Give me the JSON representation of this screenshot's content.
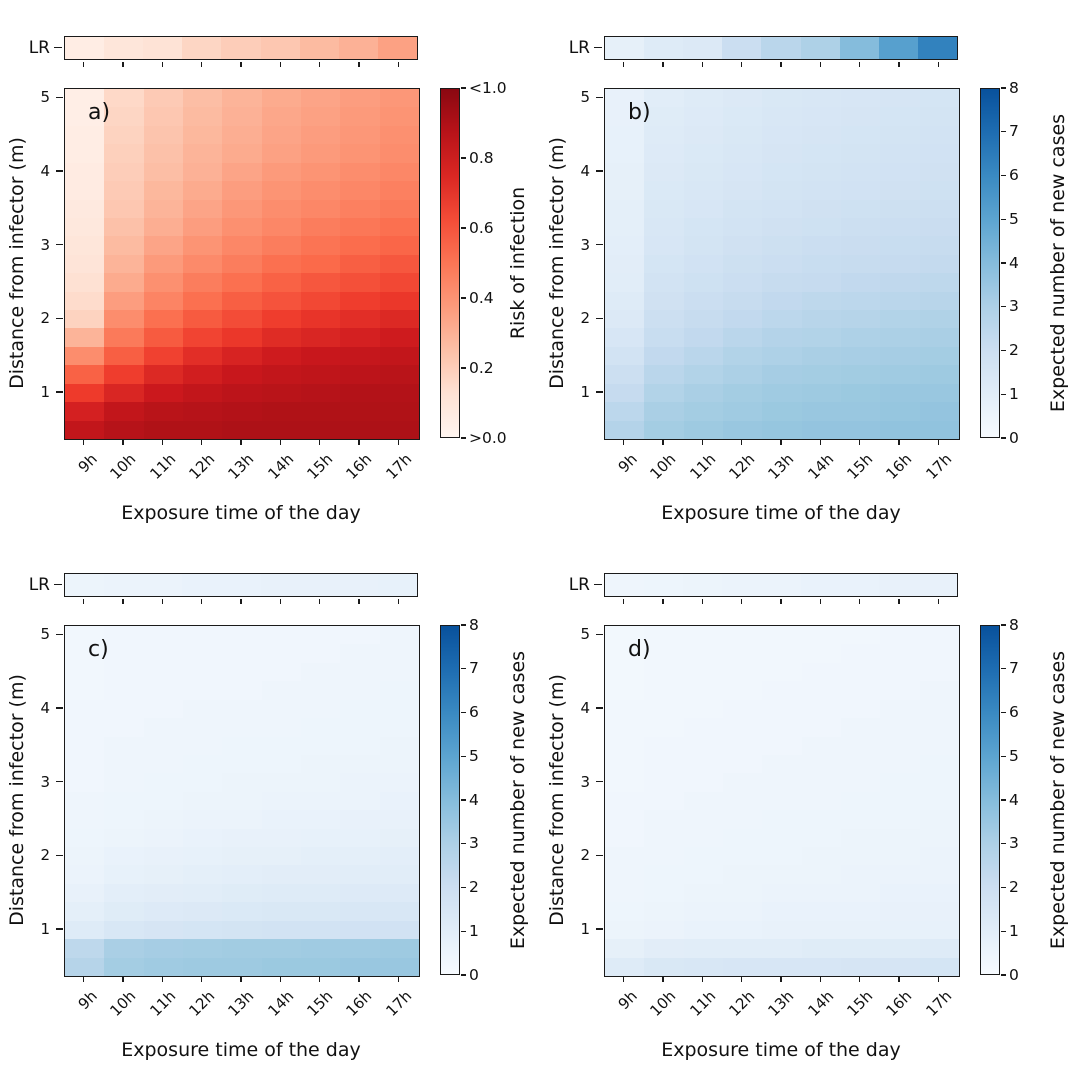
{
  "colors": {
    "background": "#ffffff",
    "text": "#111111",
    "spine": "#1a1a1a",
    "colormaps": {
      "Reds": [
        "#fff5f0",
        "#fee0d2",
        "#fcbba1",
        "#fc9272",
        "#fb6a4a",
        "#ef3b2c",
        "#cb181d",
        "#a50f15",
        "#67000d"
      ],
      "Blues": [
        "#f7fbff",
        "#deebf7",
        "#c6dbef",
        "#9ecae1",
        "#6baed6",
        "#4292c6",
        "#2171b5",
        "#08519c",
        "#08306b"
      ]
    },
    "colorbar_gradients": {
      "Reds": [
        "#fff5f0",
        "#fee2d4",
        "#fcbfa6",
        "#fc9a7b",
        "#fb7555",
        "#f34c37",
        "#da2723",
        "#b81319",
        "#8a0811"
      ],
      "Blues": [
        "#f7fbff",
        "#e1edf8",
        "#ccdef1",
        "#add0e6",
        "#85bcdc",
        "#5ca4d0",
        "#3a8ac2",
        "#1e6db2",
        "#08519c"
      ]
    }
  },
  "chart_data": [
    {
      "type": "heatmap",
      "title": "a)",
      "lr_label": "LR",
      "xlabel": "Exposure time of the day",
      "ylabel": "Distance from infector (m)",
      "colorbar_label": "Risk of infection",
      "colormap": "Reds",
      "vmin": 0,
      "vmax": 1,
      "x_ticklabels": [
        "9h",
        "10h",
        "11h",
        "12h",
        "13h",
        "14h",
        "15h",
        "16h",
        "17h"
      ],
      "y_ticklabels": [
        "1",
        "2",
        "3",
        "4",
        "5"
      ],
      "y_range": [
        0.375,
        5.125
      ],
      "cb_ticks": [
        [
          1.0,
          "<1.0"
        ],
        [
          0.8,
          "0.8"
        ],
        [
          0.6,
          "0.6"
        ],
        [
          0.4,
          "0.4"
        ],
        [
          0.2,
          "0.2"
        ],
        [
          0.0,
          ">0.0"
        ]
      ],
      "lr_values": [
        0.05,
        0.09,
        0.11,
        0.16,
        0.19,
        0.21,
        0.25,
        0.28,
        0.33
      ],
      "row_distances": [
        5.0,
        4.75,
        4.5,
        4.25,
        4.0,
        3.75,
        3.5,
        3.25,
        3.0,
        2.75,
        2.5,
        2.25,
        2.0,
        1.75,
        1.5,
        1.25,
        1.0,
        0.75,
        0.5
      ],
      "values": [
        [
          0.04,
          0.15,
          0.2,
          0.24,
          0.27,
          0.3,
          0.32,
          0.34,
          0.36
        ],
        [
          0.04,
          0.16,
          0.21,
          0.25,
          0.28,
          0.31,
          0.33,
          0.35,
          0.37
        ],
        [
          0.05,
          0.17,
          0.22,
          0.26,
          0.29,
          0.32,
          0.34,
          0.36,
          0.38
        ],
        [
          0.05,
          0.18,
          0.23,
          0.27,
          0.3,
          0.33,
          0.35,
          0.37,
          0.39
        ],
        [
          0.06,
          0.19,
          0.24,
          0.28,
          0.32,
          0.35,
          0.37,
          0.39,
          0.41
        ],
        [
          0.06,
          0.2,
          0.26,
          0.3,
          0.34,
          0.37,
          0.39,
          0.41,
          0.43
        ],
        [
          0.07,
          0.21,
          0.27,
          0.32,
          0.36,
          0.39,
          0.41,
          0.43,
          0.45
        ],
        [
          0.08,
          0.23,
          0.29,
          0.34,
          0.38,
          0.41,
          0.44,
          0.46,
          0.48
        ],
        [
          0.09,
          0.25,
          0.32,
          0.37,
          0.41,
          0.44,
          0.47,
          0.49,
          0.51
        ],
        [
          0.1,
          0.27,
          0.35,
          0.4,
          0.44,
          0.48,
          0.5,
          0.53,
          0.55
        ],
        [
          0.12,
          0.3,
          0.38,
          0.44,
          0.48,
          0.52,
          0.55,
          0.57,
          0.59
        ],
        [
          0.14,
          0.34,
          0.42,
          0.48,
          0.53,
          0.56,
          0.59,
          0.62,
          0.64
        ],
        [
          0.17,
          0.39,
          0.48,
          0.54,
          0.58,
          0.62,
          0.65,
          0.67,
          0.69
        ],
        [
          0.27,
          0.45,
          0.54,
          0.6,
          0.64,
          0.68,
          0.7,
          0.72,
          0.74
        ],
        [
          0.39,
          0.53,
          0.61,
          0.67,
          0.71,
          0.74,
          0.76,
          0.77,
          0.78
        ],
        [
          0.52,
          0.62,
          0.69,
          0.73,
          0.76,
          0.78,
          0.79,
          0.8,
          0.81
        ],
        [
          0.63,
          0.7,
          0.75,
          0.78,
          0.8,
          0.81,
          0.82,
          0.83,
          0.83
        ],
        [
          0.72,
          0.78,
          0.81,
          0.82,
          0.83,
          0.84,
          0.84,
          0.84,
          0.84
        ],
        [
          0.78,
          0.82,
          0.84,
          0.84,
          0.85,
          0.85,
          0.85,
          0.85,
          0.85
        ]
      ]
    },
    {
      "type": "heatmap",
      "title": "b)",
      "lr_label": "LR",
      "xlabel": "Exposure time of the day",
      "ylabel": "Distance from infector (m)",
      "colorbar_label": "Expected number of new cases",
      "colormap": "Blues",
      "vmin": 0,
      "vmax": 8,
      "x_ticklabels": [
        "9h",
        "10h",
        "11h",
        "12h",
        "13h",
        "14h",
        "15h",
        "16h",
        "17h"
      ],
      "y_ticklabels": [
        "1",
        "2",
        "3",
        "4",
        "5"
      ],
      "y_range": [
        0.375,
        5.125
      ],
      "cb_ticks": [
        [
          1.0,
          "8"
        ],
        [
          0.875,
          "7"
        ],
        [
          0.75,
          "6"
        ],
        [
          0.625,
          "5"
        ],
        [
          0.5,
          "4"
        ],
        [
          0.375,
          "3"
        ],
        [
          0.25,
          "2"
        ],
        [
          0.125,
          "1"
        ],
        [
          0.0,
          "0"
        ]
      ],
      "lr_values": [
        0.7,
        1.0,
        1.1,
        1.8,
        2.3,
        2.6,
        3.5,
        4.5,
        5.5
      ],
      "row_distances": [
        5.0,
        4.75,
        4.5,
        4.25,
        4.0,
        3.75,
        3.5,
        3.25,
        3.0,
        2.75,
        2.5,
        2.25,
        2.0,
        1.75,
        1.5,
        1.25,
        1.0,
        0.75,
        0.5
      ],
      "values": [
        [
          0.6,
          0.9,
          1.0,
          1.1,
          1.2,
          1.25,
          1.3,
          1.35,
          1.4
        ],
        [
          0.6,
          0.95,
          1.05,
          1.15,
          1.25,
          1.3,
          1.35,
          1.4,
          1.45
        ],
        [
          0.65,
          1.0,
          1.1,
          1.2,
          1.3,
          1.35,
          1.4,
          1.45,
          1.5
        ],
        [
          0.65,
          1.05,
          1.15,
          1.25,
          1.35,
          1.4,
          1.45,
          1.5,
          1.55
        ],
        [
          0.7,
          1.1,
          1.2,
          1.3,
          1.4,
          1.45,
          1.5,
          1.55,
          1.6
        ],
        [
          0.7,
          1.15,
          1.25,
          1.35,
          1.45,
          1.5,
          1.55,
          1.6,
          1.65
        ],
        [
          0.75,
          1.2,
          1.3,
          1.45,
          1.5,
          1.6,
          1.65,
          1.7,
          1.75
        ],
        [
          0.75,
          1.25,
          1.4,
          1.5,
          1.6,
          1.65,
          1.75,
          1.8,
          1.85
        ],
        [
          0.8,
          1.3,
          1.45,
          1.6,
          1.7,
          1.8,
          1.85,
          1.9,
          1.95
        ],
        [
          0.85,
          1.4,
          1.55,
          1.7,
          1.8,
          1.9,
          1.95,
          2.0,
          2.05
        ],
        [
          0.9,
          1.5,
          1.65,
          1.8,
          1.95,
          2.0,
          2.1,
          2.15,
          2.2
        ],
        [
          1.0,
          1.6,
          1.8,
          1.95,
          2.1,
          2.2,
          2.25,
          2.3,
          2.35
        ],
        [
          1.1,
          1.75,
          1.95,
          2.1,
          2.25,
          2.35,
          2.4,
          2.5,
          2.55
        ],
        [
          1.3,
          1.9,
          2.1,
          2.3,
          2.45,
          2.5,
          2.6,
          2.65,
          2.7
        ],
        [
          1.5,
          2.1,
          2.3,
          2.5,
          2.6,
          2.7,
          2.75,
          2.8,
          2.85
        ],
        [
          1.75,
          2.3,
          2.5,
          2.65,
          2.8,
          2.85,
          2.9,
          2.95,
          3.0
        ],
        [
          2.0,
          2.5,
          2.7,
          2.85,
          2.95,
          3.0,
          3.05,
          3.1,
          3.1
        ],
        [
          2.25,
          2.7,
          2.85,
          2.95,
          3.05,
          3.1,
          3.1,
          3.15,
          3.2
        ],
        [
          2.45,
          2.85,
          3.0,
          3.1,
          3.15,
          3.2,
          3.2,
          3.25,
          3.25
        ]
      ]
    },
    {
      "type": "heatmap",
      "title": "c)",
      "lr_label": "LR",
      "xlabel": "Exposure time of the day",
      "ylabel": "Distance from infector (m)",
      "colorbar_label": "Expected number of new cases",
      "colormap": "Blues",
      "vmin": 0,
      "vmax": 8,
      "x_ticklabels": [
        "9h",
        "10h",
        "11h",
        "12h",
        "13h",
        "14h",
        "15h",
        "16h",
        "17h"
      ],
      "y_ticklabels": [
        "1",
        "2",
        "3",
        "4",
        "5"
      ],
      "y_range": [
        0.375,
        5.125
      ],
      "cb_ticks": [
        [
          1.0,
          "8"
        ],
        [
          0.875,
          "7"
        ],
        [
          0.75,
          "6"
        ],
        [
          0.625,
          "5"
        ],
        [
          0.5,
          "4"
        ],
        [
          0.375,
          "3"
        ],
        [
          0.25,
          "2"
        ],
        [
          0.125,
          "1"
        ],
        [
          0.0,
          "0"
        ]
      ],
      "lr_values": [
        0.45,
        0.5,
        0.5,
        0.55,
        0.55,
        0.6,
        0.6,
        0.6,
        0.65
      ],
      "row_distances": [
        5.0,
        4.75,
        4.5,
        4.25,
        4.0,
        3.75,
        3.5,
        3.25,
        3.0,
        2.75,
        2.5,
        2.25,
        2.0,
        1.75,
        1.5,
        1.25,
        1.0,
        0.75,
        0.5
      ],
      "values": [
        [
          0.25,
          0.3,
          0.3,
          0.3,
          0.3,
          0.3,
          0.3,
          0.3,
          0.35
        ],
        [
          0.25,
          0.3,
          0.3,
          0.3,
          0.3,
          0.3,
          0.3,
          0.35,
          0.35
        ],
        [
          0.25,
          0.3,
          0.3,
          0.3,
          0.3,
          0.3,
          0.35,
          0.35,
          0.35
        ],
        [
          0.25,
          0.3,
          0.3,
          0.3,
          0.3,
          0.35,
          0.35,
          0.35,
          0.4
        ],
        [
          0.3,
          0.3,
          0.3,
          0.35,
          0.35,
          0.35,
          0.35,
          0.4,
          0.4
        ],
        [
          0.3,
          0.3,
          0.35,
          0.35,
          0.35,
          0.35,
          0.4,
          0.4,
          0.4
        ],
        [
          0.3,
          0.35,
          0.35,
          0.35,
          0.4,
          0.4,
          0.4,
          0.4,
          0.45
        ],
        [
          0.3,
          0.35,
          0.35,
          0.4,
          0.4,
          0.4,
          0.45,
          0.45,
          0.45
        ],
        [
          0.3,
          0.35,
          0.4,
          0.4,
          0.45,
          0.45,
          0.45,
          0.5,
          0.5
        ],
        [
          0.35,
          0.4,
          0.4,
          0.45,
          0.45,
          0.5,
          0.5,
          0.5,
          0.55
        ],
        [
          0.35,
          0.4,
          0.45,
          0.5,
          0.5,
          0.55,
          0.55,
          0.6,
          0.6
        ],
        [
          0.4,
          0.45,
          0.5,
          0.55,
          0.6,
          0.6,
          0.65,
          0.65,
          0.7
        ],
        [
          0.45,
          0.55,
          0.6,
          0.65,
          0.7,
          0.7,
          0.75,
          0.75,
          0.8
        ],
        [
          0.5,
          0.65,
          0.7,
          0.75,
          0.8,
          0.85,
          0.85,
          0.9,
          0.9
        ],
        [
          0.6,
          0.8,
          0.85,
          0.9,
          0.95,
          1.0,
          1.0,
          1.05,
          1.05
        ],
        [
          0.75,
          0.95,
          1.05,
          1.1,
          1.15,
          1.2,
          1.2,
          1.25,
          1.25
        ],
        [
          1.0,
          1.25,
          1.35,
          1.4,
          1.45,
          1.5,
          1.5,
          1.55,
          1.55
        ],
        [
          2.2,
          2.7,
          2.8,
          2.85,
          2.9,
          2.9,
          2.95,
          2.95,
          3.0
        ],
        [
          2.4,
          2.85,
          2.95,
          3.0,
          3.0,
          3.05,
          3.05,
          3.1,
          3.1
        ]
      ]
    },
    {
      "type": "heatmap",
      "title": "d)",
      "lr_label": "LR",
      "xlabel": "Exposure time of the day",
      "ylabel": "Distance from infector (m)",
      "colorbar_label": "Expected number of new cases",
      "colormap": "Blues",
      "vmin": 0,
      "vmax": 8,
      "x_ticklabels": [
        "9h",
        "10h",
        "11h",
        "12h",
        "13h",
        "14h",
        "15h",
        "16h",
        "17h"
      ],
      "y_ticklabels": [
        "1",
        "2",
        "3",
        "4",
        "5"
      ],
      "y_range": [
        0.375,
        5.125
      ],
      "cb_ticks": [
        [
          1.0,
          "8"
        ],
        [
          0.875,
          "7"
        ],
        [
          0.75,
          "6"
        ],
        [
          0.625,
          "5"
        ],
        [
          0.5,
          "4"
        ],
        [
          0.375,
          "3"
        ],
        [
          0.25,
          "2"
        ],
        [
          0.125,
          "1"
        ],
        [
          0.0,
          "0"
        ]
      ],
      "lr_values": [
        0.35,
        0.4,
        0.45,
        0.5,
        0.5,
        0.55,
        0.55,
        0.6,
        0.6
      ],
      "row_distances": [
        5.0,
        4.75,
        4.5,
        4.25,
        4.0,
        3.75,
        3.5,
        3.25,
        3.0,
        2.75,
        2.5,
        2.25,
        2.0,
        1.75,
        1.5,
        1.25,
        1.0,
        0.75,
        0.5
      ],
      "values": [
        [
          0.2,
          0.25,
          0.25,
          0.25,
          0.25,
          0.25,
          0.25,
          0.3,
          0.3
        ],
        [
          0.2,
          0.25,
          0.25,
          0.25,
          0.25,
          0.25,
          0.3,
          0.3,
          0.3
        ],
        [
          0.2,
          0.25,
          0.25,
          0.25,
          0.25,
          0.3,
          0.3,
          0.3,
          0.3
        ],
        [
          0.2,
          0.25,
          0.25,
          0.25,
          0.3,
          0.3,
          0.3,
          0.3,
          0.35
        ],
        [
          0.25,
          0.25,
          0.25,
          0.3,
          0.3,
          0.3,
          0.3,
          0.35,
          0.35
        ],
        [
          0.25,
          0.25,
          0.3,
          0.3,
          0.3,
          0.3,
          0.35,
          0.35,
          0.35
        ],
        [
          0.25,
          0.3,
          0.3,
          0.3,
          0.3,
          0.35,
          0.35,
          0.35,
          0.35
        ],
        [
          0.25,
          0.3,
          0.3,
          0.3,
          0.35,
          0.35,
          0.35,
          0.35,
          0.4
        ],
        [
          0.25,
          0.3,
          0.3,
          0.35,
          0.35,
          0.35,
          0.35,
          0.4,
          0.4
        ],
        [
          0.3,
          0.3,
          0.35,
          0.35,
          0.35,
          0.35,
          0.4,
          0.4,
          0.4
        ],
        [
          0.3,
          0.35,
          0.35,
          0.35,
          0.4,
          0.4,
          0.4,
          0.4,
          0.45
        ],
        [
          0.3,
          0.35,
          0.35,
          0.4,
          0.4,
          0.4,
          0.45,
          0.45,
          0.45
        ],
        [
          0.35,
          0.35,
          0.4,
          0.4,
          0.4,
          0.45,
          0.45,
          0.45,
          0.5
        ],
        [
          0.35,
          0.4,
          0.4,
          0.45,
          0.45,
          0.45,
          0.5,
          0.5,
          0.5
        ],
        [
          0.35,
          0.4,
          0.45,
          0.45,
          0.5,
          0.5,
          0.5,
          0.55,
          0.55
        ],
        [
          0.4,
          0.45,
          0.5,
          0.5,
          0.55,
          0.55,
          0.55,
          0.6,
          0.6
        ],
        [
          0.45,
          0.5,
          0.55,
          0.55,
          0.6,
          0.6,
          0.6,
          0.65,
          0.65
        ],
        [
          0.7,
          0.85,
          0.9,
          0.9,
          0.9,
          0.95,
          0.95,
          0.95,
          1.0
        ],
        [
          1.0,
          1.2,
          1.25,
          1.3,
          1.3,
          1.3,
          1.35,
          1.35,
          1.4
        ]
      ]
    }
  ]
}
